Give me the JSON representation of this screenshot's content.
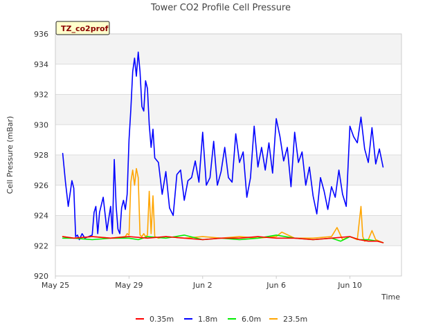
{
  "chart_data": {
    "type": "line",
    "title": "Tower CO2 Profile Cell Pressure",
    "xlabel": "Time",
    "ylabel": "Cell Pressure (mBar)",
    "tag": "TZ_co2prof",
    "ylim": [
      920,
      936
    ],
    "xlim": [
      0,
      18.8
    ],
    "y_ticks": [
      "920",
      "922",
      "924",
      "926",
      "928",
      "930",
      "932",
      "934",
      "936"
    ],
    "x_ticks": [
      {
        "label": "May 25",
        "value": 0
      },
      {
        "label": "May 29",
        "value": 4
      },
      {
        "label": "Jun 2",
        "value": 8
      },
      {
        "label": "Jun 6",
        "value": 12
      },
      {
        "label": "Jun 10",
        "value": 16
      }
    ],
    "grid": true,
    "legend_position": "bottom",
    "series": [
      {
        "name": "0.35m",
        "color": "#ff0000",
        "x": [
          0.4,
          1.0,
          2.0,
          3.0,
          4.0,
          5.0,
          6.0,
          7.0,
          8.0,
          9.0,
          10.0,
          11.0,
          12.0,
          13.0,
          14.0,
          15.0,
          16.0,
          16.5,
          17.0,
          17.5,
          17.8
        ],
        "y": [
          922.6,
          922.5,
          922.6,
          922.5,
          922.6,
          922.5,
          922.6,
          922.5,
          922.4,
          922.5,
          922.5,
          922.6,
          922.5,
          922.5,
          922.4,
          922.5,
          922.6,
          922.4,
          922.3,
          922.3,
          922.2
        ]
      },
      {
        "name": "1.8m",
        "color": "#0000ff",
        "x": [
          0.4,
          0.55,
          0.7,
          0.9,
          1.0,
          1.1,
          1.2,
          1.3,
          1.45,
          1.6,
          1.8,
          2.0,
          2.1,
          2.2,
          2.3,
          2.4,
          2.6,
          2.8,
          3.0,
          3.1,
          3.2,
          3.3,
          3.4,
          3.5,
          3.6,
          3.7,
          3.8,
          3.9,
          4.0,
          4.1,
          4.2,
          4.3,
          4.4,
          4.5,
          4.6,
          4.7,
          4.8,
          4.9,
          5.0,
          5.1,
          5.2,
          5.3,
          5.4,
          5.6,
          5.8,
          6.0,
          6.2,
          6.4,
          6.6,
          6.8,
          7.0,
          7.2,
          7.4,
          7.6,
          7.8,
          8.0,
          8.2,
          8.4,
          8.6,
          8.8,
          9.0,
          9.2,
          9.4,
          9.6,
          9.8,
          10.0,
          10.2,
          10.4,
          10.6,
          10.8,
          11.0,
          11.2,
          11.4,
          11.6,
          11.8,
          12.0,
          12.2,
          12.4,
          12.6,
          12.8,
          13.0,
          13.2,
          13.4,
          13.6,
          13.8,
          14.0,
          14.2,
          14.4,
          14.6,
          14.8,
          15.0,
          15.2,
          15.4,
          15.6,
          15.8,
          16.0,
          16.2,
          16.4,
          16.6,
          16.8,
          17.0,
          17.2,
          17.4,
          17.6,
          17.8
        ],
        "y": [
          928.1,
          926.2,
          924.6,
          926.3,
          925.8,
          922.6,
          922.7,
          922.4,
          922.8,
          922.5,
          922.6,
          922.7,
          924.2,
          924.6,
          922.8,
          924.2,
          925.2,
          923.0,
          924.6,
          922.8,
          927.7,
          924.6,
          923.1,
          922.8,
          924.5,
          925.0,
          924.4,
          925.4,
          929.0,
          931.0,
          933.5,
          934.4,
          933.2,
          934.8,
          933.5,
          931.2,
          930.9,
          932.9,
          932.4,
          930.0,
          928.5,
          929.7,
          927.8,
          927.5,
          925.4,
          926.9,
          924.5,
          924.0,
          926.7,
          927.0,
          925.0,
          926.3,
          926.5,
          927.6,
          926.2,
          929.5,
          926.0,
          926.5,
          928.9,
          926.0,
          926.9,
          928.5,
          926.5,
          926.2,
          929.4,
          927.5,
          928.2,
          925.2,
          926.5,
          929.9,
          927.2,
          928.5,
          927.0,
          928.8,
          926.8,
          930.4,
          929.2,
          927.6,
          928.5,
          925.9,
          929.5,
          927.5,
          928.2,
          926.0,
          927.2,
          925.3,
          924.1,
          926.5,
          925.6,
          924.4,
          925.9,
          925.2,
          927.0,
          925.4,
          924.6,
          929.9,
          929.2,
          928.8,
          930.5,
          928.4,
          927.5,
          929.8,
          927.4,
          928.4,
          927.2
        ]
      },
      {
        "name": "6.0m",
        "color": "#00ee00",
        "x": [
          0.4,
          1.0,
          2.0,
          3.0,
          4.0,
          4.5,
          5.0,
          6.0,
          7.0,
          8.0,
          9.0,
          10.0,
          11.0,
          12.0,
          13.0,
          14.0,
          15.0,
          15.5,
          16.0,
          16.5,
          17.0,
          17.5,
          17.8
        ],
        "y": [
          922.5,
          922.5,
          922.4,
          922.5,
          922.5,
          922.4,
          922.6,
          922.5,
          922.7,
          922.4,
          922.5,
          922.4,
          922.5,
          922.7,
          922.5,
          922.4,
          922.5,
          922.3,
          922.6,
          922.4,
          922.4,
          922.3,
          922.2
        ]
      },
      {
        "name": "23.5m",
        "color": "#ffa500",
        "x": [
          0.4,
          1.0,
          2.0,
          3.0,
          3.8,
          3.9,
          4.0,
          4.1,
          4.2,
          4.3,
          4.4,
          4.5,
          4.6,
          4.7,
          4.8,
          4.9,
          5.0,
          5.1,
          5.2,
          5.3,
          5.4,
          5.6,
          6.0,
          7.0,
          8.0,
          9.0,
          10.0,
          11.0,
          12.0,
          12.3,
          13.0,
          14.0,
          15.0,
          15.3,
          15.6,
          16.0,
          16.4,
          16.6,
          16.7,
          16.8,
          17.0,
          17.2,
          17.4,
          17.8
        ],
        "y": [
          922.6,
          922.5,
          922.6,
          922.5,
          922.6,
          922.8,
          922.7,
          926.2,
          927.0,
          926.0,
          927.1,
          926.5,
          922.7,
          922.6,
          922.8,
          922.6,
          922.7,
          925.6,
          922.8,
          925.3,
          922.6,
          922.5,
          922.6,
          922.5,
          922.6,
          922.5,
          922.6,
          922.5,
          922.6,
          922.9,
          922.5,
          922.5,
          922.6,
          923.2,
          922.4,
          922.6,
          922.4,
          924.6,
          922.6,
          922.3,
          922.4,
          923.0,
          922.4,
          922.2
        ]
      }
    ]
  }
}
